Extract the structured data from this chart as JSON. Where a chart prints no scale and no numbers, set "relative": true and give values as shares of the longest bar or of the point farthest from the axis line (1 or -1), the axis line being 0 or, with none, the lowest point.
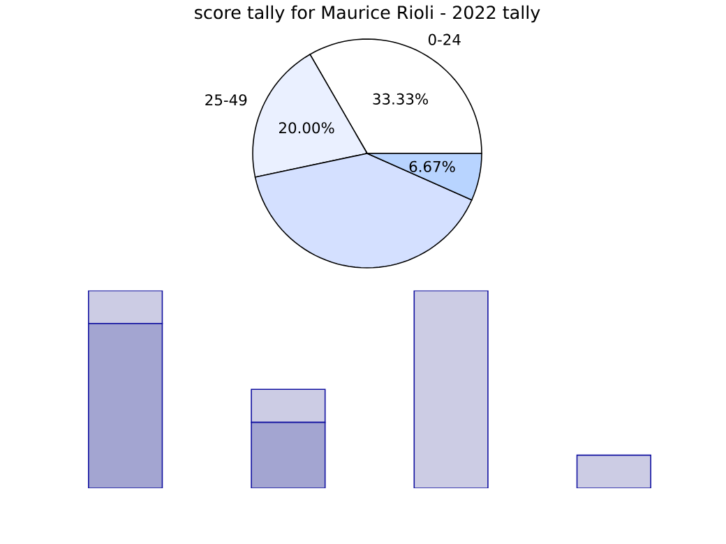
{
  "chart_data": [
    {
      "type": "pie",
      "title": "score tally for Maurice Rioli - 2022 tally",
      "categories": [
        "0-24",
        "25-49",
        null,
        null
      ],
      "values": [
        33.33,
        20.0,
        40.0,
        6.67
      ],
      "colors": [
        "#ffffff",
        "#eaf0ff",
        "#d4e0ff",
        "#b8d4ff"
      ],
      "value_labels": [
        "33.33%",
        "20.00%",
        null,
        "6.67%"
      ]
    },
    {
      "type": "bar",
      "relative": true,
      "stacked": true,
      "categories": [
        null,
        null,
        null,
        null
      ],
      "series": [
        {
          "color": "#a3a5d1",
          "values": [
            0.833,
            0.333,
            0,
            0
          ]
        },
        {
          "color": "#cccce4",
          "values": [
            0.167,
            0.167,
            1.0,
            0.167
          ]
        }
      ]
    }
  ]
}
